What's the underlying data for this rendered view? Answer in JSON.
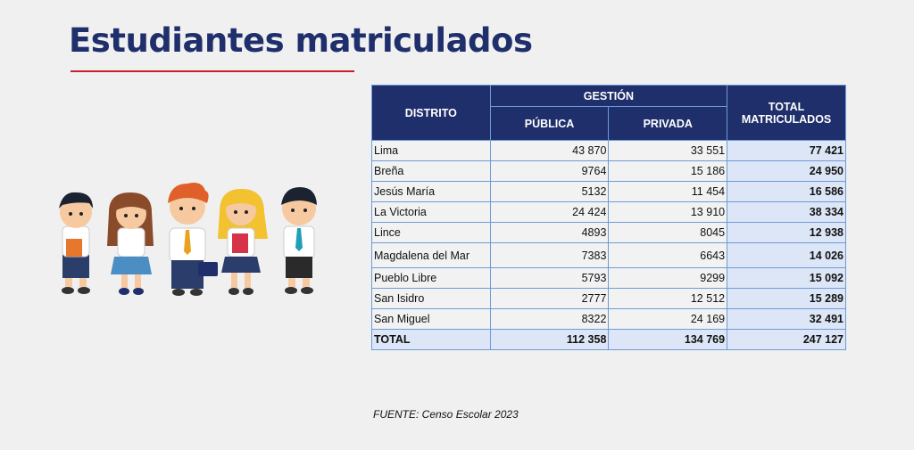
{
  "title": "Estudiantes matriculados",
  "colors": {
    "title": "#1f2f6b",
    "rule": "#c8202a",
    "header_bg": "#1f2f6b",
    "border": "#6d9bd8",
    "total_bg": "#dde6f6"
  },
  "illustration": "five-cartoon-students",
  "table": {
    "headers": {
      "district": "DISTRITO",
      "management": "GESTIÓN",
      "public": "PÚBLICA",
      "private": "PRIVADA",
      "total_line1": "TOTAL",
      "total_line2": "MATRICULADOS"
    },
    "rows": [
      {
        "district": "Lima",
        "public": "43 870",
        "private": "33 551",
        "total": "77 421"
      },
      {
        "district": "Breña",
        "public": "9764",
        "private": "15 186",
        "total": "24 950"
      },
      {
        "district": "Jesús María",
        "public": "5132",
        "private": "11 454",
        "total": "16 586"
      },
      {
        "district": "La Victoria",
        "public": "24 424",
        "private": "13 910",
        "total": "38 334"
      },
      {
        "district": "Lince",
        "public": "4893",
        "private": "8045",
        "total": "12 938"
      },
      {
        "district": "Magdalena del Mar",
        "public": "7383",
        "private": "6643",
        "total": "14 026"
      },
      {
        "district": "Pueblo Libre",
        "public": "5793",
        "private": "9299",
        "total": "15 092"
      },
      {
        "district": "San Isidro",
        "public": "2777",
        "private": "12 512",
        "total": "15 289"
      },
      {
        "district": "San Miguel",
        "public": "8322",
        "private": "24 169",
        "total": "32 491"
      }
    ],
    "total_row": {
      "district": "TOTAL",
      "public": "112 358",
      "private": "134 769",
      "total": "247 127"
    }
  },
  "source": "FUENTE: Censo Escolar 2023"
}
